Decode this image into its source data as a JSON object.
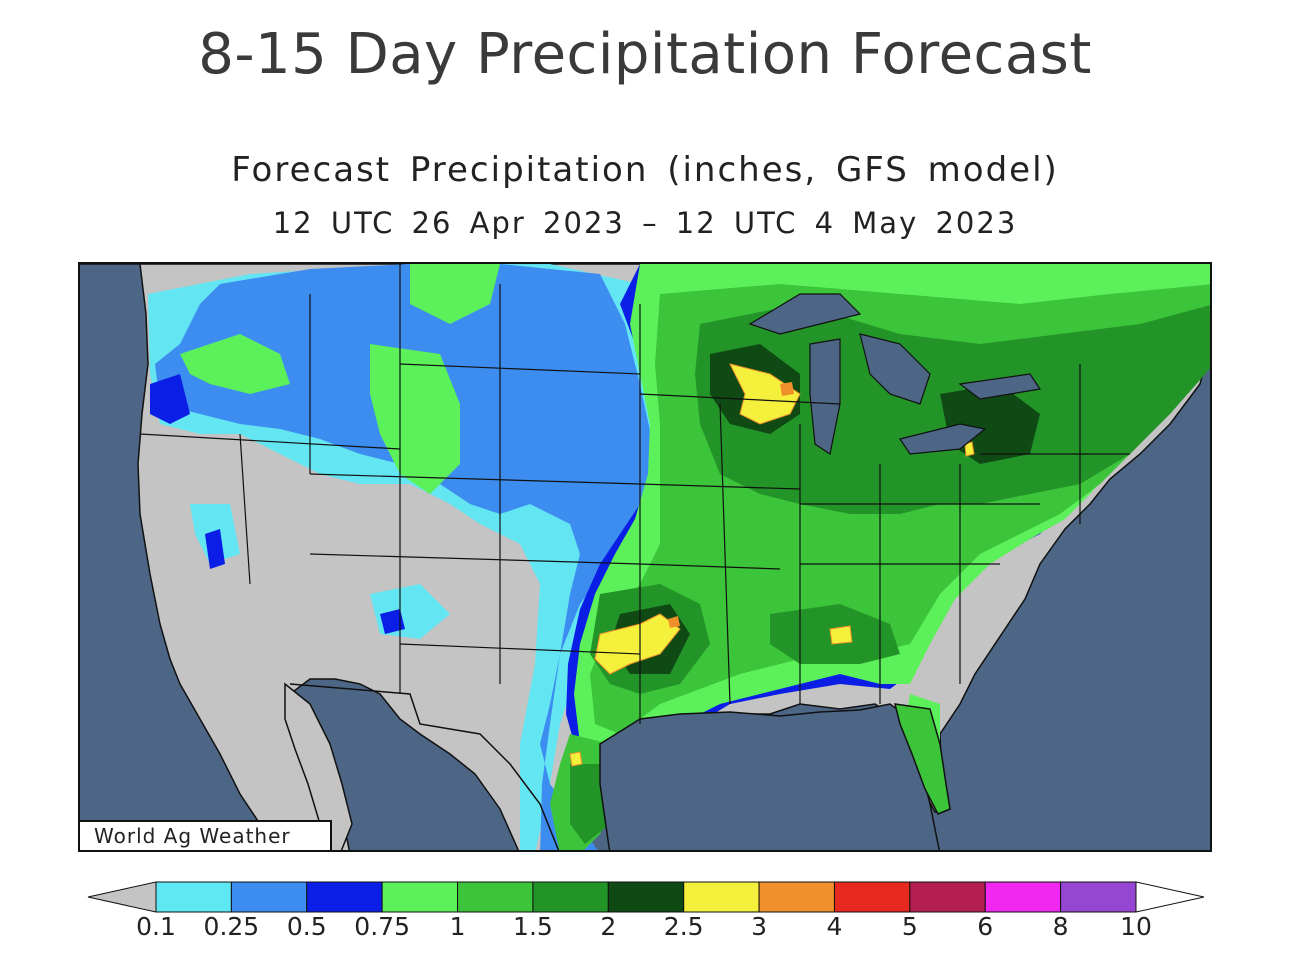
{
  "header": {
    "page_title": "8-15 Day Precipitation Forecast"
  },
  "map": {
    "title": "Forecast Precipitation (inches, GFS model)",
    "subtitle": "12 UTC 26 Apr 2023 – 12 UTC 4 May 2023",
    "credit": "World Ag Weather",
    "colors": {
      "ocean": "#4d6685",
      "land_dry": "#c4c4c4",
      "border": "#111111"
    }
  },
  "colorbar": {
    "under_color": "#c4c4c4",
    "over_color": "#ffffff",
    "bins": [
      {
        "color": "#5ee8f4"
      },
      {
        "color": "#3d8cf0"
      },
      {
        "color": "#0a1ee6"
      },
      {
        "color": "#5cf05a"
      },
      {
        "color": "#3cc43a"
      },
      {
        "color": "#239428"
      },
      {
        "color": "#0f4a14"
      },
      {
        "color": "#f4f03c"
      },
      {
        "color": "#f0902c"
      },
      {
        "color": "#e6281e"
      },
      {
        "color": "#b41e50"
      },
      {
        "color": "#f028f0"
      },
      {
        "color": "#9646d2"
      }
    ],
    "labels": [
      "0.1",
      "0.25",
      "0.5",
      "0.75",
      "1",
      "1.5",
      "2",
      "2.5",
      "3",
      "4",
      "5",
      "6",
      "8",
      "10"
    ]
  }
}
